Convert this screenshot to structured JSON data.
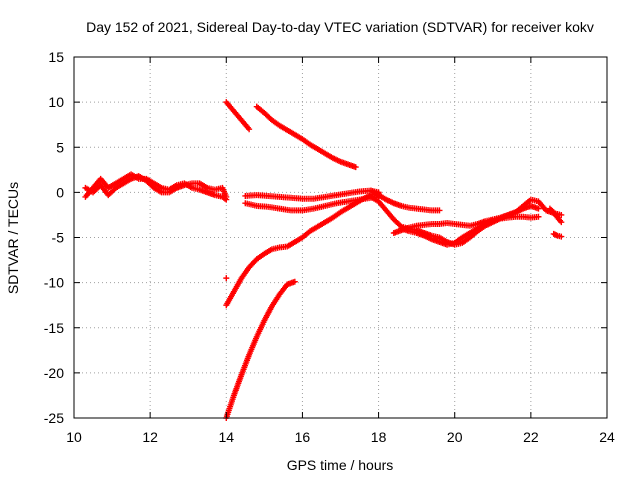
{
  "chart_data": {
    "type": "scatter",
    "title": "Day 152 of 2021, Sidereal Day-to-day VTEC variation (SDTVAR) for receiver kokv",
    "xlabel": "GPS time / hours",
    "ylabel": "SDTVAR / TECUs",
    "xlim": [
      10,
      24
    ],
    "ylim": [
      -25,
      15
    ],
    "xticks": [
      "10",
      "12",
      "14",
      "16",
      "18",
      "20",
      "22",
      "24"
    ],
    "yticks": [
      "15",
      "10",
      "5",
      "0",
      "-5",
      "-10",
      "-15",
      "-20",
      "-25"
    ],
    "grid": true,
    "legend": "none",
    "marker": "+",
    "color": "#ff0000",
    "series": [
      {
        "x": [
          10.3,
          10.5,
          10.7,
          10.9,
          11.1,
          11.3,
          11.5,
          11.7,
          11.9,
          12.1,
          12.3,
          12.5,
          12.7,
          12.9,
          13.1,
          13.3,
          13.5,
          13.7,
          13.9,
          14.0
        ],
        "y": [
          -0.5,
          0.5,
          1.5,
          0.5,
          1.0,
          1.5,
          2.0,
          1.5,
          1.5,
          1.0,
          0.5,
          0.3,
          0.8,
          1.0,
          0.5,
          0.3,
          0.0,
          -0.3,
          -0.5,
          -0.8
        ]
      },
      {
        "x": [
          10.3,
          10.5,
          10.7,
          10.9,
          11.1,
          11.3,
          11.5,
          11.7,
          11.9,
          12.1,
          12.3,
          12.5,
          12.7,
          12.9,
          13.1,
          13.3,
          13.5,
          13.7,
          13.9,
          14.0
        ],
        "y": [
          0.5,
          0.0,
          0.8,
          -0.3,
          0.5,
          1.0,
          1.5,
          1.8,
          1.3,
          0.5,
          0.0,
          0.0,
          0.5,
          0.8,
          1.0,
          1.0,
          0.5,
          0.3,
          0.5,
          -0.5
        ]
      },
      {
        "x": [
          14.0,
          14.2,
          14.4,
          14.6
        ],
        "y": [
          10.0,
          9.0,
          8.0,
          7.0
        ]
      },
      {
        "x": [
          14.8,
          15.0,
          15.2,
          15.4,
          15.6,
          15.8,
          16.0,
          16.2,
          16.4,
          16.6,
          16.8,
          17.0,
          17.2,
          17.4
        ],
        "y": [
          9.5,
          8.8,
          8.0,
          7.4,
          6.9,
          6.4,
          5.9,
          5.3,
          4.8,
          4.3,
          3.8,
          3.4,
          3.1,
          2.8
        ]
      },
      {
        "x": [
          14.0,
          14.2,
          14.4,
          14.6,
          14.8,
          15.0,
          15.2,
          15.4,
          15.6,
          15.8,
          16.0,
          16.2,
          16.4,
          16.6,
          16.8,
          17.0,
          17.2,
          17.4,
          17.6,
          17.8,
          18.0
        ],
        "y": [
          -12.5,
          -11.0,
          -9.5,
          -8.3,
          -7.4,
          -6.8,
          -6.3,
          -6.1,
          -6.0,
          -5.5,
          -5.0,
          -4.3,
          -3.8,
          -3.3,
          -2.8,
          -2.2,
          -1.7,
          -1.2,
          -0.7,
          -0.3,
          -0.1
        ]
      },
      {
        "x": [
          14.0,
          14.2,
          14.4,
          14.6,
          14.8,
          15.0,
          15.2,
          15.4,
          15.6,
          15.8
        ],
        "y": [
          -25.0,
          -22.5,
          -20.2,
          -18.0,
          -16.0,
          -14.2,
          -12.6,
          -11.3,
          -10.2,
          -9.9
        ]
      },
      {
        "x": [
          14.5,
          14.8,
          15.1,
          15.4,
          15.7,
          16.0,
          16.3,
          16.6,
          16.9,
          17.2,
          17.5,
          17.8,
          18.0
        ],
        "y": [
          -1.2,
          -1.5,
          -1.6,
          -1.8,
          -2.0,
          -2.0,
          -1.8,
          -1.5,
          -1.2,
          -1.0,
          -0.8,
          -0.6,
          -0.5
        ]
      },
      {
        "x": [
          14.5,
          14.8,
          15.1,
          15.4,
          15.7,
          16.0,
          16.3,
          16.6,
          16.9,
          17.2,
          17.5,
          17.8,
          18.0
        ],
        "y": [
          -0.4,
          -0.3,
          -0.4,
          -0.5,
          -0.6,
          -0.7,
          -0.7,
          -0.5,
          -0.3,
          -0.1,
          0.1,
          0.2,
          0.0
        ]
      },
      {
        "x": [
          17.8,
          18.0,
          18.2,
          18.4,
          18.6,
          18.8,
          19.0,
          19.2,
          19.4,
          19.6
        ],
        "y": [
          0.2,
          -0.3,
          -0.8,
          -1.2,
          -1.5,
          -1.7,
          -1.8,
          -1.9,
          -2.0,
          -2.0
        ]
      },
      {
        "x": [
          17.8,
          18.0,
          18.2,
          18.4,
          18.6,
          18.8,
          19.0,
          19.2,
          19.4,
          19.6,
          19.8,
          20.0,
          20.2,
          20.4,
          20.6,
          20.8,
          21.0,
          21.2,
          21.4,
          21.6,
          21.8,
          22.0,
          22.2
        ],
        "y": [
          -0.5,
          -1.0,
          -2.0,
          -3.0,
          -3.8,
          -4.0,
          -4.2,
          -4.5,
          -4.8,
          -5.0,
          -5.5,
          -5.8,
          -5.6,
          -5.0,
          -4.3,
          -3.7,
          -3.3,
          -2.9,
          -2.5,
          -2.2,
          -1.8,
          -1.5,
          -1.8
        ]
      },
      {
        "x": [
          18.4,
          18.6,
          18.8,
          19.0,
          19.2,
          19.4,
          19.6,
          19.8,
          20.0,
          20.2,
          20.4,
          20.6,
          20.8,
          21.0,
          21.2,
          21.4,
          21.6,
          21.8,
          22.0,
          22.2
        ],
        "y": [
          -4.5,
          -4.2,
          -3.9,
          -3.7,
          -3.6,
          -3.5,
          -3.5,
          -3.4,
          -3.5,
          -3.6,
          -3.7,
          -3.5,
          -3.2,
          -3.0,
          -2.9,
          -2.8,
          -2.7,
          -2.7,
          -2.8,
          -2.7
        ]
      },
      {
        "x": [
          18.6,
          18.8,
          19.0,
          19.2,
          19.4,
          19.6,
          19.8,
          20.0,
          20.2,
          20.4,
          20.6,
          20.8,
          21.0,
          21.2,
          21.4,
          21.6,
          21.8,
          22.0,
          22.2,
          22.4,
          22.6,
          22.8
        ],
        "y": [
          -4.0,
          -4.3,
          -4.5,
          -4.8,
          -5.2,
          -5.5,
          -5.8,
          -5.6,
          -5.0,
          -4.5,
          -4.0,
          -3.5,
          -3.0,
          -2.8,
          -2.5,
          -2.2,
          -1.5,
          -0.8,
          -1.0,
          -2.0,
          -2.3,
          -2.5
        ]
      },
      {
        "x": [
          22.5,
          22.6,
          22.7,
          22.8
        ],
        "y": [
          -1.8,
          -2.2,
          -2.8,
          -3.3
        ]
      },
      {
        "x": [
          22.6,
          22.7,
          22.8
        ],
        "y": [
          -4.6,
          -4.8,
          -4.9
        ]
      },
      {
        "x": [
          14.0
        ],
        "y": [
          -9.5
        ]
      }
    ]
  }
}
